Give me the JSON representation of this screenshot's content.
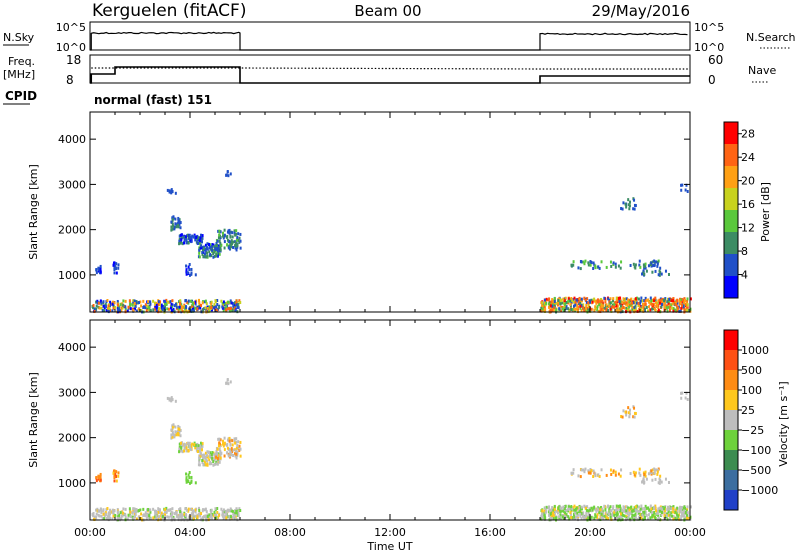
{
  "header": {
    "station": "Kerguelen (fitACF)",
    "beam": "Beam 00",
    "date": "29/May/2016"
  },
  "nsky_panel": {
    "left_label": "N.Sky",
    "right_label": "N.Search",
    "ticks": [
      "10^5",
      "10^0"
    ],
    "right_ticks": [
      "10^5",
      "10^0"
    ]
  },
  "freq_panel": {
    "left_label_1": "Freq.",
    "left_label_2": "[MHz]",
    "right_label": "Nave",
    "left_ticks": [
      "18",
      "8"
    ],
    "right_ticks": [
      "60",
      "0"
    ]
  },
  "cpid": {
    "label": "CPID",
    "value": "normal (fast) 151"
  },
  "chart_data": [
    {
      "type": "heatmap",
      "title": "",
      "xlabel": "Time UT",
      "ylabel": "Slant Range [km]",
      "xlim": [
        0,
        24
      ],
      "ylim": [
        180,
        4600
      ],
      "x_ticks": [
        "00:00",
        "04:00",
        "08:00",
        "12:00",
        "16:00",
        "20:00",
        "00:00"
      ],
      "y_ticks": [
        "1000",
        "2000",
        "3000",
        "4000"
      ],
      "colorbar": {
        "label": "Power [dB]",
        "ticks": [
          "4",
          "8",
          "12",
          "16",
          "20",
          "24",
          "28"
        ],
        "range": [
          0,
          30
        ],
        "colors": [
          "#0000ff",
          "#2050c8",
          "#3c8c64",
          "#5ac83c",
          "#c8d21e",
          "#ffa014",
          "#ff6414",
          "#ff0000"
        ]
      },
      "data_windows_ut": [
        [
          0,
          6
        ],
        [
          18,
          24
        ]
      ]
    },
    {
      "type": "heatmap",
      "title": "",
      "xlabel": "Time UT",
      "ylabel": "Slant Range [km]",
      "xlim": [
        0,
        24
      ],
      "ylim": [
        180,
        4600
      ],
      "x_ticks": [
        "00:00",
        "04:00",
        "08:00",
        "12:00",
        "16:00",
        "20:00",
        "00:00"
      ],
      "y_ticks": [
        "1000",
        "2000",
        "3000",
        "4000"
      ],
      "colorbar": {
        "label": "Velocity [m s⁻¹]",
        "ticks": [
          "1000",
          "500",
          "100",
          "25",
          "−25",
          "−100",
          "−500",
          "−1000"
        ],
        "colors": [
          "#2040c8",
          "#3c6ea0",
          "#3c8c50",
          "#6ed23c",
          "#bebebe",
          "#ffc81e",
          "#ff8c14",
          "#ff5014",
          "#ff0000"
        ]
      },
      "data_windows_ut": [
        [
          0,
          6
        ],
        [
          18,
          24
        ]
      ]
    }
  ]
}
